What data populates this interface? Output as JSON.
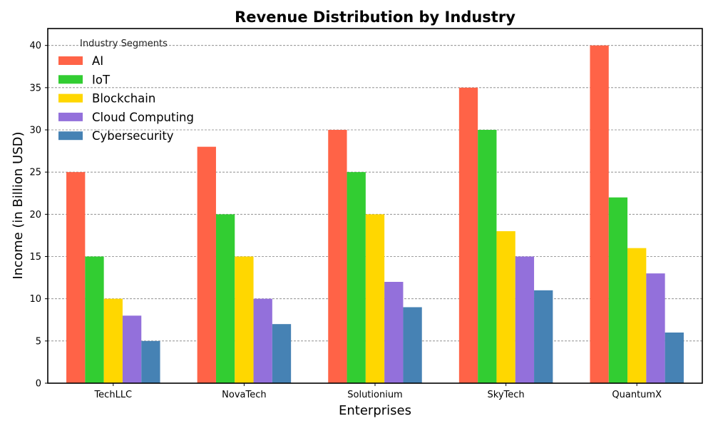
{
  "chart_data": {
    "type": "bar",
    "title": "Revenue Distribution by Industry",
    "xlabel": "Enterprises",
    "ylabel": "Income (in Billion USD)",
    "categories": [
      "TechLLC",
      "NovaTech",
      "Solutionium",
      "SkyTech",
      "QuantumX"
    ],
    "series": [
      {
        "name": "AI",
        "color": "#ff6347",
        "values": [
          25,
          28,
          30,
          35,
          40
        ]
      },
      {
        "name": "IoT",
        "color": "#32cd32",
        "values": [
          15,
          20,
          25,
          30,
          22
        ]
      },
      {
        "name": "Blockchain",
        "color": "#ffd700",
        "values": [
          10,
          15,
          20,
          18,
          16
        ]
      },
      {
        "name": "Cloud Computing",
        "color": "#9370db",
        "values": [
          8,
          10,
          12,
          15,
          13
        ]
      },
      {
        "name": "Cybersecurity",
        "color": "#4682b4",
        "values": [
          5,
          7,
          9,
          11,
          6
        ]
      }
    ],
    "ylim": [
      0,
      42
    ],
    "yticks": [
      0,
      5,
      10,
      15,
      20,
      25,
      30,
      35,
      40
    ],
    "grid": true,
    "grid_axis": "y",
    "legend": {
      "title": "Industry Segments",
      "placement": "top-left"
    }
  }
}
